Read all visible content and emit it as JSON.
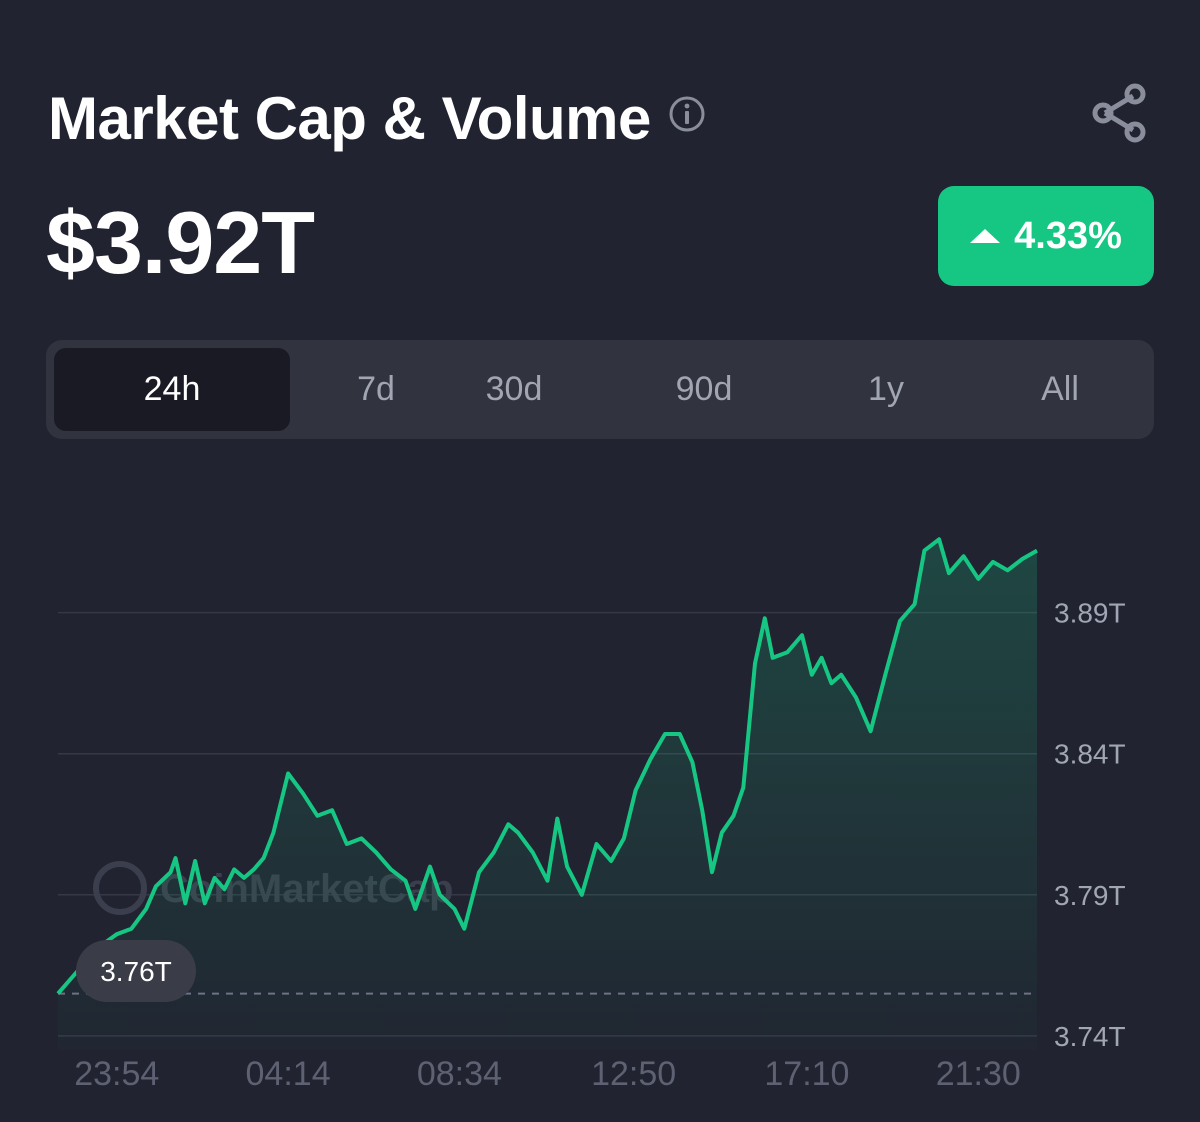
{
  "header": {
    "title": "Market Cap & Volume",
    "info_icon": "info-icon",
    "share_icon": "share-icon"
  },
  "summary": {
    "value": "$3.92T",
    "change": "4.33%",
    "change_direction": "up",
    "change_color": "#16c784"
  },
  "tabs": [
    {
      "label": "24h",
      "active": true
    },
    {
      "label": "7d",
      "active": false
    },
    {
      "label": "30d",
      "active": false
    },
    {
      "label": "90d",
      "active": false
    },
    {
      "label": "1y",
      "active": false
    },
    {
      "label": "All",
      "active": false
    }
  ],
  "watermark": "CoinMarketCap",
  "chart_data": {
    "type": "area",
    "line_color": "#16c784",
    "baseline_label": "3.76T",
    "baseline_value": 3.755,
    "ylim": [
      3.735,
      3.92
    ],
    "y_ticks": [
      {
        "value": 3.89,
        "label": "3.89T"
      },
      {
        "value": 3.84,
        "label": "3.84T"
      },
      {
        "value": 3.79,
        "label": "3.79T"
      },
      {
        "value": 3.74,
        "label": "3.74T"
      }
    ],
    "x_ticks": [
      "23:54",
      "04:14",
      "08:34",
      "12:50",
      "17:10",
      "21:30"
    ],
    "x_tick_positions": [
      0.06,
      0.235,
      0.41,
      0.588,
      0.765,
      0.94
    ],
    "grid": true,
    "points": [
      [
        0.0,
        3.755
      ],
      [
        0.02,
        3.763
      ],
      [
        0.04,
        3.771
      ],
      [
        0.06,
        3.776
      ],
      [
        0.075,
        3.778
      ],
      [
        0.09,
        3.785
      ],
      [
        0.1,
        3.793
      ],
      [
        0.115,
        3.798
      ],
      [
        0.12,
        3.803
      ],
      [
        0.13,
        3.787
      ],
      [
        0.14,
        3.802
      ],
      [
        0.15,
        3.787
      ],
      [
        0.16,
        3.796
      ],
      [
        0.17,
        3.792
      ],
      [
        0.18,
        3.799
      ],
      [
        0.19,
        3.796
      ],
      [
        0.2,
        3.799
      ],
      [
        0.21,
        3.803
      ],
      [
        0.22,
        3.812
      ],
      [
        0.235,
        3.833
      ],
      [
        0.25,
        3.826
      ],
      [
        0.265,
        3.818
      ],
      [
        0.28,
        3.82
      ],
      [
        0.295,
        3.808
      ],
      [
        0.31,
        3.81
      ],
      [
        0.325,
        3.805
      ],
      [
        0.34,
        3.799
      ],
      [
        0.355,
        3.795
      ],
      [
        0.365,
        3.785
      ],
      [
        0.38,
        3.8
      ],
      [
        0.39,
        3.79
      ],
      [
        0.405,
        3.785
      ],
      [
        0.415,
        3.778
      ],
      [
        0.43,
        3.798
      ],
      [
        0.445,
        3.805
      ],
      [
        0.46,
        3.815
      ],
      [
        0.47,
        3.812
      ],
      [
        0.485,
        3.805
      ],
      [
        0.5,
        3.795
      ],
      [
        0.51,
        3.817
      ],
      [
        0.52,
        3.8
      ],
      [
        0.535,
        3.79
      ],
      [
        0.55,
        3.808
      ],
      [
        0.565,
        3.802
      ],
      [
        0.578,
        3.81
      ],
      [
        0.59,
        3.827
      ],
      [
        0.605,
        3.838
      ],
      [
        0.62,
        3.847
      ],
      [
        0.635,
        3.847
      ],
      [
        0.648,
        3.837
      ],
      [
        0.658,
        3.82
      ],
      [
        0.668,
        3.798
      ],
      [
        0.678,
        3.812
      ],
      [
        0.69,
        3.818
      ],
      [
        0.7,
        3.828
      ],
      [
        0.712,
        3.872
      ],
      [
        0.722,
        3.888
      ],
      [
        0.73,
        3.874
      ],
      [
        0.745,
        3.876
      ],
      [
        0.76,
        3.882
      ],
      [
        0.77,
        3.868
      ],
      [
        0.78,
        3.874
      ],
      [
        0.79,
        3.865
      ],
      [
        0.8,
        3.868
      ],
      [
        0.815,
        3.86
      ],
      [
        0.83,
        3.848
      ],
      [
        0.845,
        3.868
      ],
      [
        0.86,
        3.887
      ],
      [
        0.875,
        3.893
      ],
      [
        0.885,
        3.912
      ],
      [
        0.9,
        3.916
      ],
      [
        0.91,
        3.904
      ],
      [
        0.925,
        3.91
      ],
      [
        0.94,
        3.902
      ],
      [
        0.955,
        3.908
      ],
      [
        0.97,
        3.905
      ],
      [
        0.985,
        3.909
      ],
      [
        1.0,
        3.912
      ]
    ]
  }
}
